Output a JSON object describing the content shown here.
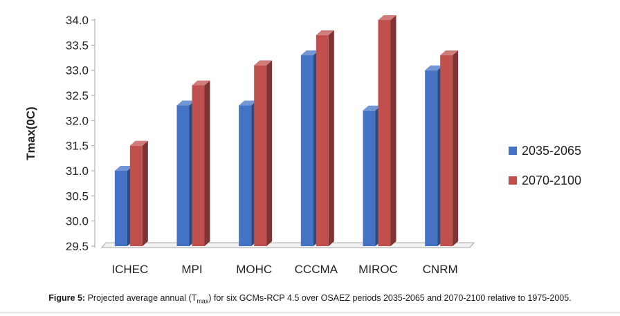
{
  "chart_data": {
    "type": "bar",
    "categories": [
      "ICHEC",
      "MPI",
      "MOHC",
      "CCCMA",
      "MIROC",
      "CNRM"
    ],
    "series": [
      {
        "name": "2035-2065",
        "values": [
          31.0,
          32.3,
          32.3,
          33.3,
          32.2,
          33.0
        ],
        "color": "#4472c4"
      },
      {
        "name": "2070-2100",
        "values": [
          31.5,
          32.7,
          33.1,
          33.7,
          34.0,
          33.3
        ],
        "color": "#c0504d"
      }
    ],
    "ylabel": "Tmax(0C)",
    "ylim": [
      29.5,
      34.0
    ],
    "yticks": [
      "29.5",
      "30.0",
      "30.5",
      "31.0",
      "31.5",
      "32.0",
      "32.5",
      "33.0",
      "33.5",
      "34.0"
    ],
    "grid": false,
    "legend_position": "right",
    "style": "3d-column"
  },
  "caption": {
    "label": "Figure 5:",
    "text_before": "Projected average annual (T",
    "subscript": "max",
    "text_after": ") for six GCMs-RCP 4.5 over OSAEZ periods 2035-2065 and 2070-2100 relative to 1975-2005."
  }
}
